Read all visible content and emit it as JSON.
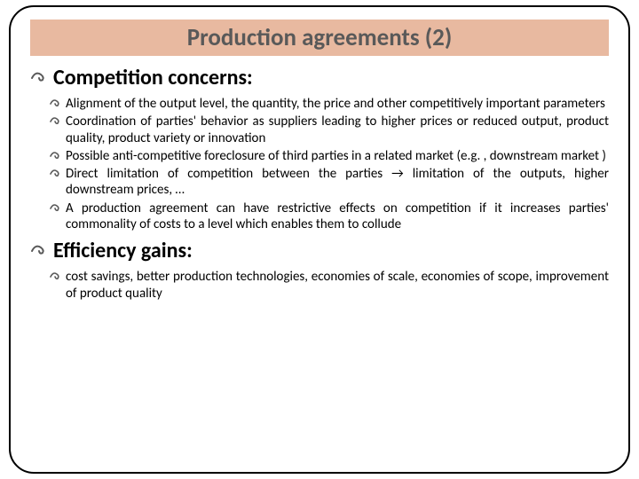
{
  "title": "Production agreements (2)",
  "sections": [
    {
      "heading": "Competition concerns:",
      "bullets": [
        "Alignment of the output level, the quantity, the price and other competitively important parameters",
        "Coordination of parties' behavior as suppliers leading to higher prices or reduced output, product quality, product variety or innovation",
        "Possible anti-competitive foreclosure of third parties in a related market (e.g. , downstream market )",
        "Direct limitation of competition between the parties → limitation of the outputs, higher downstream prices, …",
        "A production agreement can have restrictive effects on competition if it increases parties' commonality of costs to a level which enables them to collude"
      ]
    },
    {
      "heading": "Efficiency gains:",
      "bullets": [
        "cost savings, better production technologies, economies of scale, economies of scope, improvement of product quality"
      ]
    }
  ],
  "colors": {
    "title_bg": "#e8b9a0",
    "title_text": "#595959",
    "body_text": "#000000",
    "border": "#000000",
    "flourish": "#595959"
  },
  "typography": {
    "title_fontsize": 27,
    "heading_fontsize": 24,
    "bullet_fontsize": 15
  }
}
